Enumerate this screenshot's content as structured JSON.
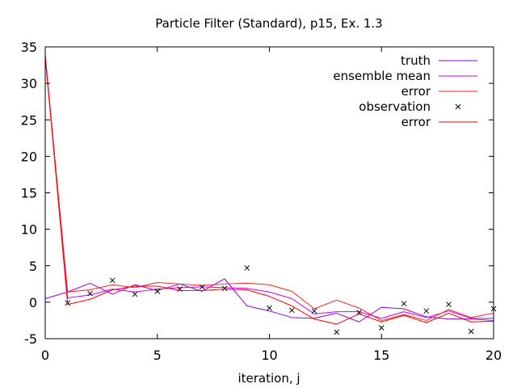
{
  "chart_data": {
    "type": "line",
    "title": "Particle Filter (Standard), p15, Ex. 1.3",
    "xlabel": "iteration, j",
    "ylabel": "",
    "xlim": [
      0,
      20
    ],
    "ylim": [
      -5,
      35
    ],
    "xticks": [
      0,
      5,
      10,
      15,
      20
    ],
    "yticks": [
      -5,
      0,
      5,
      10,
      15,
      20,
      25,
      30,
      35
    ],
    "grid": false,
    "legend_position": "top-right",
    "x": [
      0,
      1,
      2,
      3,
      4,
      5,
      6,
      7,
      8,
      9,
      10,
      11,
      12,
      13,
      14,
      15,
      16,
      17,
      18,
      19,
      20
    ],
    "series": [
      {
        "name": "truth",
        "color": "#9400d3",
        "style": "line",
        "values": [
          0.5,
          1.4,
          2.6,
          1.1,
          2.4,
          1.6,
          2.5,
          1.5,
          3.2,
          -0.5,
          -1.2,
          -2.1,
          -2.2,
          -1.5,
          -2.7,
          -0.7,
          -0.9,
          -2.0,
          -2.3,
          -2.3,
          -2.5
        ]
      },
      {
        "name": "ensemble mean",
        "color": "#cc00ff",
        "style": "line",
        "values": [
          34.0,
          0.6,
          1.0,
          1.8,
          1.4,
          1.8,
          2.0,
          2.1,
          2.0,
          1.9,
          1.4,
          0.5,
          -1.6,
          -1.3,
          -1.3,
          -2.2,
          -1.3,
          -2.1,
          -1.2,
          -2.2,
          -2.2
        ]
      },
      {
        "name": "error",
        "color": "#ff2020",
        "style": "line",
        "values": [
          33.5,
          1.4,
          1.7,
          2.4,
          2.0,
          2.7,
          2.5,
          2.3,
          2.5,
          2.6,
          2.4,
          1.5,
          -0.9,
          0.3,
          -0.8,
          -2.5,
          -1.7,
          -2.5,
          -1.0,
          -2.1,
          -1.5
        ]
      },
      {
        "name": "observation",
        "color": "#000000",
        "style": "points",
        "values": [
          null,
          -0.1,
          1.2,
          3.0,
          1.1,
          1.5,
          1.8,
          2.1,
          1.9,
          4.7,
          -0.8,
          -1.1,
          -1.2,
          -4.1,
          -1.4,
          -3.5,
          -0.2,
          -1.2,
          -0.3,
          -4.0,
          -0.9
        ]
      },
      {
        "name": "error",
        "color": "#ff0000",
        "style": "line",
        "values": [
          33.6,
          -0.3,
          0.4,
          1.7,
          2.2,
          2.2,
          1.6,
          1.6,
          1.8,
          1.7,
          0.8,
          -0.5,
          -2.3,
          -3.0,
          -1.6,
          -2.7,
          -1.8,
          -2.8,
          -1.5,
          -2.7,
          -2.6
        ]
      }
    ]
  }
}
